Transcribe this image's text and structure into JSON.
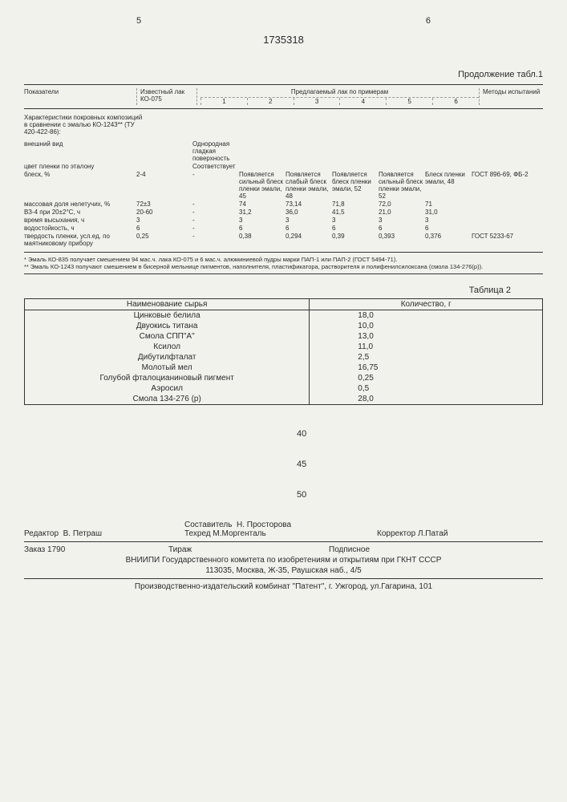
{
  "pageLeft": "5",
  "patentNumber": "1735318",
  "pageRight": "6",
  "table1": {
    "continuation": "Продолжение табл.1",
    "hdr_indicators": "Показатели",
    "hdr_known": "Известный лак КО-075",
    "hdr_examples": "Предлагаемый лак по примерам",
    "hdr_method": "Методы испытаний",
    "excols": [
      "1",
      "2",
      "3",
      "4",
      "5",
      "6"
    ],
    "section_title": "Характеристики покровных композиций в сравнении с эмалью КО-1243** (ТУ 420-422-86):",
    "rows": [
      {
        "name": "внешний вид",
        "known": "",
        "v": [
          "Однородная гладкая поверхность",
          "",
          "",
          "",
          "",
          ""
        ],
        "method": ""
      },
      {
        "name": "цвет пленки по эталону",
        "known": "",
        "v": [
          "Соответствует",
          "",
          "",
          "",
          "",
          ""
        ],
        "method": ""
      },
      {
        "name": "блеск, %",
        "known": "2-4",
        "v": [
          "-",
          "Появляется сильный блеск пленки эмали, 45",
          "Появляется слабый блеск пленки эмали, 48",
          "Появляется блеск пленки эмали, 52",
          "Появляется сильный блеск пленки эмали, 52",
          "Блеск пленки эмали, 48"
        ],
        "method": "ГОСТ 896-69, ФБ-2"
      },
      {
        "name": "массовая доля нелетучих, %",
        "known": "72±3",
        "v": [
          "-",
          "74",
          "73,14",
          "71,8",
          "72,0",
          "71"
        ],
        "method": ""
      },
      {
        "name": "ВЗ-4 при 20±2°С, ч",
        "known": "20-60",
        "v": [
          "-",
          "31,2",
          "36,0",
          "41,5",
          "21,0",
          "31,0"
        ],
        "method": ""
      },
      {
        "name": "время высыхания, ч",
        "known": "3",
        "v": [
          "-",
          "3",
          "3",
          "3",
          "3",
          "3"
        ],
        "method": ""
      },
      {
        "name": "водостойкость, ч",
        "known": "6",
        "v": [
          "-",
          "6",
          "6",
          "6",
          "6",
          "6"
        ],
        "method": ""
      },
      {
        "name": "твердость пленки, усл.ед. по маятниковому прибору",
        "known": "0,25",
        "v": [
          "-",
          "0,38",
          "0,294",
          "0,39",
          "0,393",
          "0,376"
        ],
        "method": "ГОСТ 5233-67"
      }
    ],
    "footnote1": "* Эмаль КО-835 получает смешением 94 мас.ч. лака КО-075 и 6 мас.ч. алюминиевой пудры марки ПАП-1 или ПАП-2 (ГОСТ 5494-71).",
    "footnote2": "** Эмаль КО-1243 получают смешением в бисерной мельнице пигментов, наполнителя, пластификатора, растворителя и полифенилсилоксана (смола 134-276(р))."
  },
  "table2": {
    "label": "Таблица 2",
    "hdr_name": "Наименование сырья",
    "hdr_qty": "Количество, г",
    "rows": [
      {
        "n": "Цинковые белила",
        "q": "18,0"
      },
      {
        "n": "Двуокись титана",
        "q": "10,0"
      },
      {
        "n": "Смола СПП\"А\"",
        "q": "13,0"
      },
      {
        "n": "Ксилол",
        "q": "11,0"
      },
      {
        "n": "Дибутилфталат",
        "q": "2,5"
      },
      {
        "n": "Молотый мел",
        "q": "16,75"
      },
      {
        "n": "Голубой фталоцианиновый пигмент",
        "q": "0,25"
      },
      {
        "n": "Аэросил",
        "q": "0,5"
      },
      {
        "n": "Смола 134-276 (р)",
        "q": "28,0"
      }
    ]
  },
  "linenos": [
    "40",
    "45",
    "50"
  ],
  "credits": {
    "editor_label": "Редактор",
    "editor": "В. Петраш",
    "compiler_label": "Составитель",
    "compiler": "Н. Просторова",
    "techred_label": "Техред",
    "techred": "М.Моргенталь",
    "corrector_label": "Корректор",
    "corrector": "Л.Патай"
  },
  "order": {
    "zakaz_label": "Заказ",
    "zakaz": "1790",
    "tirazh": "Тираж",
    "podpisnoe": "Подписное",
    "org": "ВНИИПИ Государственного комитета по изобретениям и открытиям при ГКНТ СССР",
    "addr": "113035, Москва, Ж-35, Раушская наб., 4/5",
    "printer": "Производственно-издательский комбинат \"Патент\", г. Ужгород, ул.Гагарина, 101"
  }
}
